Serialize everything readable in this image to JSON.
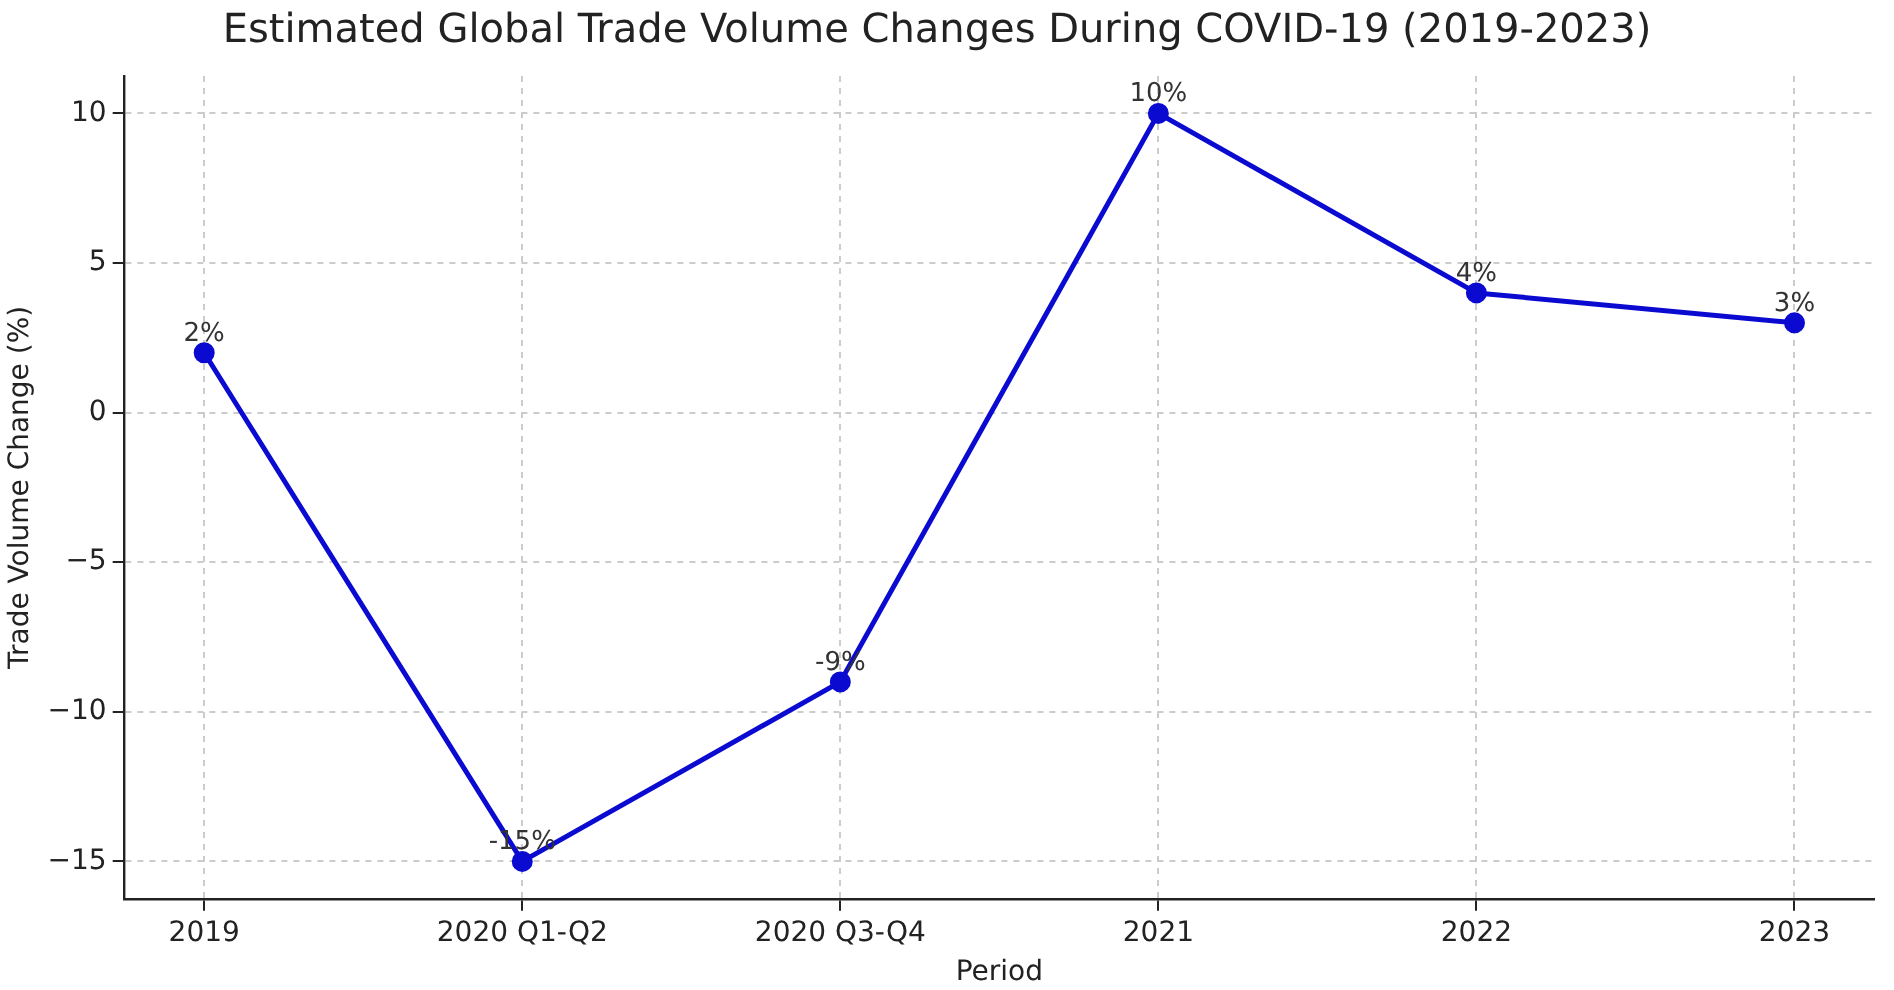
{
  "chart_data": {
    "type": "line",
    "title": "Estimated Global Trade Volume Changes During COVID-19 (2019-2023)",
    "xlabel": "Period",
    "ylabel": "Trade Volume Change (%)",
    "categories": [
      "2019",
      "2020 Q1-Q2",
      "2020 Q3-Q4",
      "2021",
      "2022",
      "2023"
    ],
    "series": [
      {
        "color": "#0a0ad0",
        "values": [
          2,
          -15,
          -9,
          10,
          4,
          3
        ],
        "value_labels": [
          "2%",
          "-15%",
          "-9%",
          "10%",
          "4%",
          "3%"
        ]
      }
    ],
    "ylim": [
      -16.25,
      11.25
    ],
    "yticks": [
      -15,
      -10,
      -5,
      0,
      5,
      10
    ],
    "grid": true,
    "legend": false,
    "marker": "circle",
    "line_style": "solid"
  }
}
